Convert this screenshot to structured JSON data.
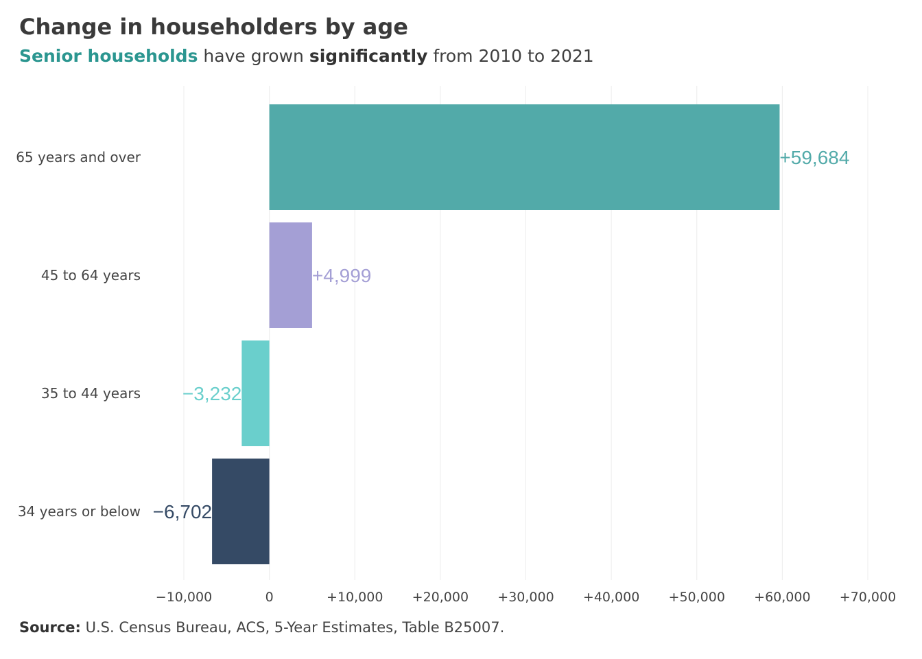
{
  "header": {
    "title": "Change in householders by age",
    "subtitle_highlight": "Senior households",
    "subtitle_mid": " have grown ",
    "subtitle_emphasis": "significantly",
    "subtitle_end": " from 2010  to 2021"
  },
  "footer": {
    "source_label": "Source:",
    "source_text": " U.S. Census Bureau,  ACS, 5-Year Estimates,  Table B25007."
  },
  "chart_data": {
    "type": "bar",
    "orientation": "horizontal",
    "categories": [
      "65 years and over",
      "45 to 64 years",
      "35 to 44 years",
      "34 years or below"
    ],
    "values": [
      59684,
      4999,
      -3232,
      -6702
    ],
    "value_labels": [
      "+59,684",
      "+4,999",
      "−3,232",
      "−6,702"
    ],
    "colors": [
      "#52aaa9",
      "#a49fd5",
      "#6acfcc",
      "#354a65"
    ],
    "xlim": [
      -10000,
      70000
    ],
    "x_ticks": [
      -10000,
      0,
      10000,
      20000,
      30000,
      40000,
      50000,
      60000,
      70000
    ],
    "x_tick_labels": [
      "−10,000",
      "0",
      "+10,000",
      "+20,000",
      "+30,000",
      "+40,000",
      "+50,000",
      "+60,000",
      "+70,000"
    ],
    "grid": "vertical",
    "legend": "none"
  }
}
